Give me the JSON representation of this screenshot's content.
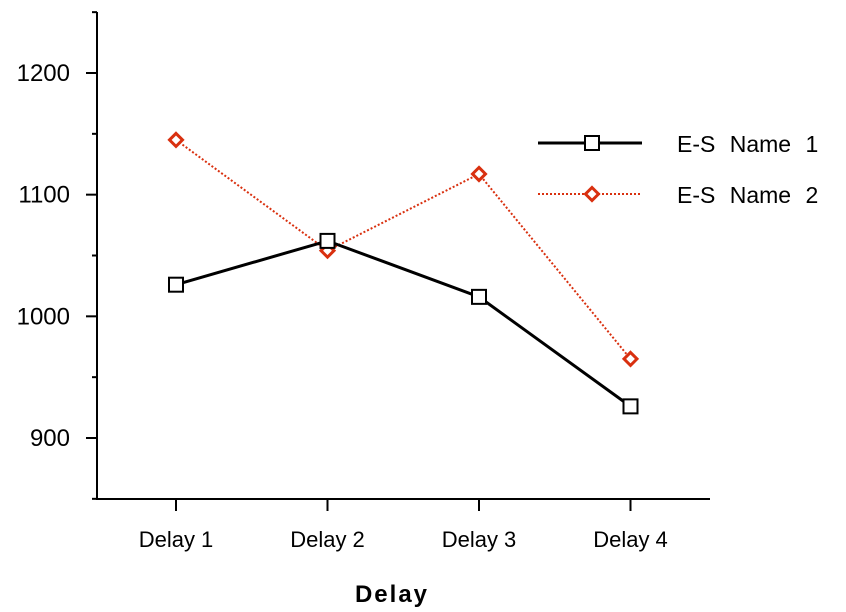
{
  "chart_data": {
    "type": "line",
    "categories": [
      "Delay 1",
      "Delay 2",
      "Delay 3",
      "Delay 4"
    ],
    "xlabel": "Delay",
    "ylabel": "",
    "ylim": [
      850,
      1250
    ],
    "yticks": [
      900,
      1000,
      1100,
      1200
    ],
    "yticks_labels": [
      "900",
      "1000",
      "1100",
      "1200"
    ],
    "grid": false,
    "legend_position": "right",
    "series": [
      {
        "name": "E-S Name 1",
        "values": [
          1026,
          1062,
          1016,
          926
        ],
        "color": "#000000",
        "line_style": "solid",
        "marker": "square"
      },
      {
        "name": "E-S Name 2",
        "values": [
          1145,
          1054,
          1117,
          965
        ],
        "color": "#d9300f",
        "line_style": "dotted",
        "marker": "diamond"
      }
    ]
  }
}
